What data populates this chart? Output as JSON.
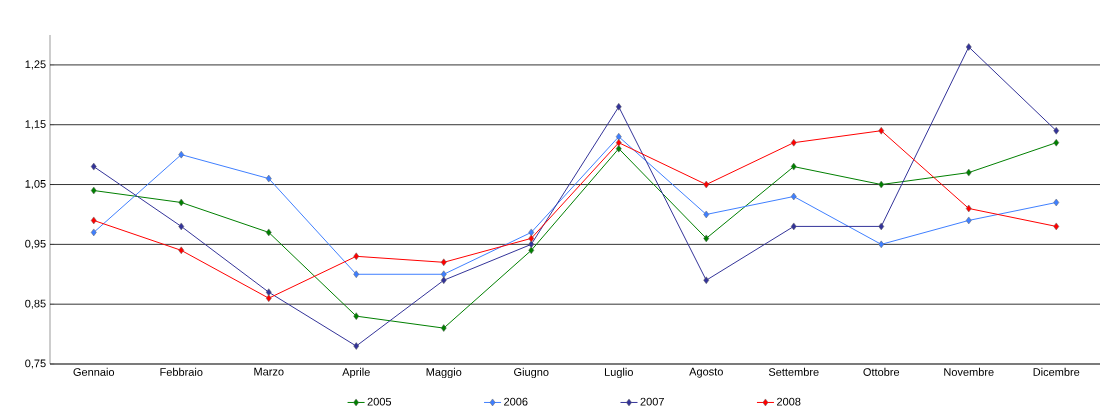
{
  "chart_data": {
    "type": "line",
    "categories": [
      "Gennaio",
      "Febbraio",
      "Marzo",
      "Aprile",
      "Maggio",
      "Giugno",
      "Luglio",
      "Agosto",
      "Settembre",
      "Ottobre",
      "Novembre",
      "Dicembre"
    ],
    "series": [
      {
        "name": "2005",
        "color": "#008000",
        "values": [
          1.04,
          1.02,
          0.97,
          0.83,
          0.81,
          0.94,
          1.11,
          0.96,
          1.08,
          1.05,
          1.07,
          1.12
        ]
      },
      {
        "name": "2006",
        "color": "#3f7fff",
        "values": [
          0.97,
          1.1,
          1.06,
          0.9,
          0.9,
          0.97,
          1.13,
          1.0,
          1.03,
          0.95,
          0.99,
          1.02
        ]
      },
      {
        "name": "2007",
        "color": "#333399",
        "values": [
          1.08,
          0.98,
          0.87,
          0.78,
          0.89,
          0.95,
          1.18,
          0.89,
          0.98,
          0.98,
          1.28,
          1.14
        ]
      },
      {
        "name": "2008",
        "color": "#ff0000",
        "values": [
          0.99,
          0.94,
          0.86,
          0.93,
          0.92,
          0.96,
          1.12,
          1.05,
          1.12,
          1.14,
          1.01,
          0.98
        ]
      }
    ],
    "ylim": [
      0.75,
      1.3
    ],
    "yticks": [
      {
        "value": 0.75,
        "label": "0,75"
      },
      {
        "value": 0.85,
        "label": "0,85"
      },
      {
        "value": 0.95,
        "label": "0,95"
      },
      {
        "value": 1.05,
        "label": "1,05"
      },
      {
        "value": 1.15,
        "label": "1,15"
      },
      {
        "value": 1.25,
        "label": "1,25"
      }
    ],
    "grid": "y",
    "legend": "bottom",
    "marker": "diamond",
    "line_style": "solid"
  }
}
